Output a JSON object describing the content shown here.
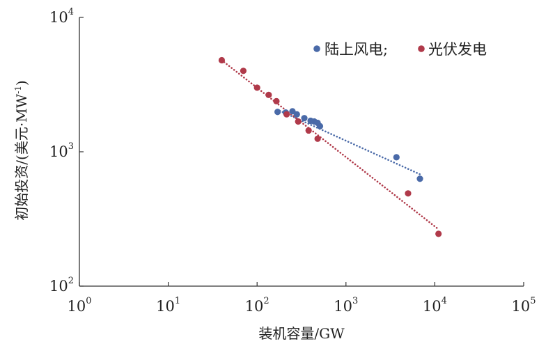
{
  "chart_data": {
    "type": "scatter",
    "x_scale": "log",
    "y_scale": "log",
    "xlim": [
      1,
      100000
    ],
    "ylim": [
      100,
      10000
    ],
    "x_ticks": [
      {
        "value": 1,
        "base": "10",
        "exp": "0"
      },
      {
        "value": 10,
        "base": "10",
        "exp": "1"
      },
      {
        "value": 100,
        "base": "10",
        "exp": "2"
      },
      {
        "value": 1000,
        "base": "10",
        "exp": "3"
      },
      {
        "value": 10000,
        "base": "10",
        "exp": "4"
      },
      {
        "value": 100000,
        "base": "10",
        "exp": "5"
      }
    ],
    "y_ticks": [
      {
        "value": 100,
        "base": "10",
        "exp": "2"
      },
      {
        "value": 1000,
        "base": "10",
        "exp": "3"
      },
      {
        "value": 10000,
        "base": "10",
        "exp": "4"
      }
    ],
    "xlabel": "装机容量/GW",
    "ylabel": "初始投资/(美元·MW",
    "ylabel_sup": "-1",
    "ylabel_end": ")",
    "grid": false,
    "legend_position": "top-right",
    "legend_separator": ";",
    "series": [
      {
        "name": "陆上风电",
        "color": "#4a6aa8",
        "points": [
          {
            "x": 170,
            "y": 1980
          },
          {
            "x": 210,
            "y": 1960
          },
          {
            "x": 250,
            "y": 2000
          },
          {
            "x": 280,
            "y": 1900
          },
          {
            "x": 340,
            "y": 1780
          },
          {
            "x": 400,
            "y": 1700
          },
          {
            "x": 440,
            "y": 1680
          },
          {
            "x": 480,
            "y": 1640
          },
          {
            "x": 510,
            "y": 1550
          },
          {
            "x": 3700,
            "y": 910
          },
          {
            "x": 6800,
            "y": 630
          }
        ],
        "trend": [
          {
            "x": 180,
            "y": 2020
          },
          {
            "x": 6800,
            "y": 680
          }
        ]
      },
      {
        "name": "光伏发电",
        "color": "#b03a4a",
        "points": [
          {
            "x": 40,
            "y": 4800
          },
          {
            "x": 70,
            "y": 4000
          },
          {
            "x": 100,
            "y": 3000
          },
          {
            "x": 135,
            "y": 2650
          },
          {
            "x": 165,
            "y": 2380
          },
          {
            "x": 215,
            "y": 1900
          },
          {
            "x": 290,
            "y": 1680
          },
          {
            "x": 380,
            "y": 1440
          },
          {
            "x": 480,
            "y": 1250
          },
          {
            "x": 5000,
            "y": 490
          },
          {
            "x": 11000,
            "y": 245
          }
        ],
        "trend": [
          {
            "x": 40,
            "y": 4800
          },
          {
            "x": 11000,
            "y": 265
          }
        ]
      }
    ]
  }
}
